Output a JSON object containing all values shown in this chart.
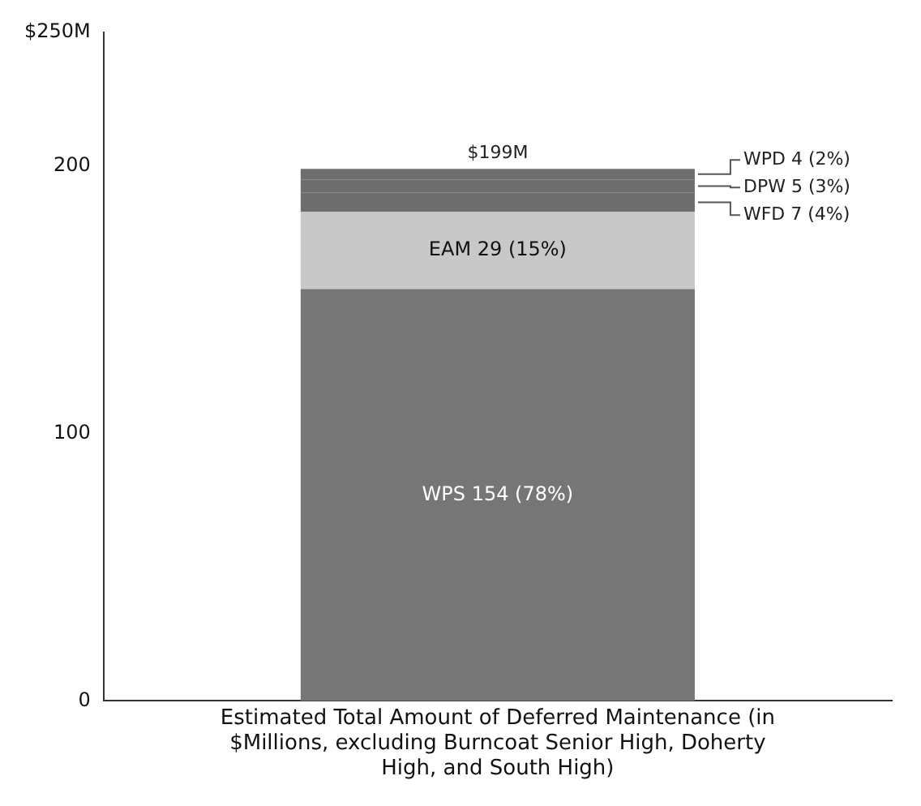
{
  "chart_data": {
    "type": "bar",
    "stacked": true,
    "categories": [
      "Estimated Total Amount of Deferred Maintenance (in $Millions, excluding Burncoat Senior High, Doherty High, and South High)"
    ],
    "series": [
      {
        "color": "#767676",
        "values": [
          154
        ],
        "value_labels": [
          "WPS 154 (78%)"
        ]
      },
      {
        "color": "#c8c8c8",
        "values": [
          29
        ],
        "value_labels": [
          "EAM 29 (15%)"
        ]
      },
      {
        "color": "#6e6e6e",
        "values": [
          7
        ],
        "value_labels": [
          "WFD 7 (4%)"
        ]
      },
      {
        "color": "#6e6e6e",
        "values": [
          5
        ],
        "value_labels": [
          "DPW 5 (3%)"
        ]
      },
      {
        "color": "#6e6e6e",
        "values": [
          4
        ],
        "value_labels": [
          "WPD 4 (2%)"
        ]
      }
    ],
    "totals": [
      "$199M"
    ],
    "ylim": [
      0,
      250
    ],
    "yticks": [
      0,
      100,
      200,
      {
        "value": 250,
        "label": "$250M"
      }
    ],
    "grid": false,
    "legend": false
  }
}
